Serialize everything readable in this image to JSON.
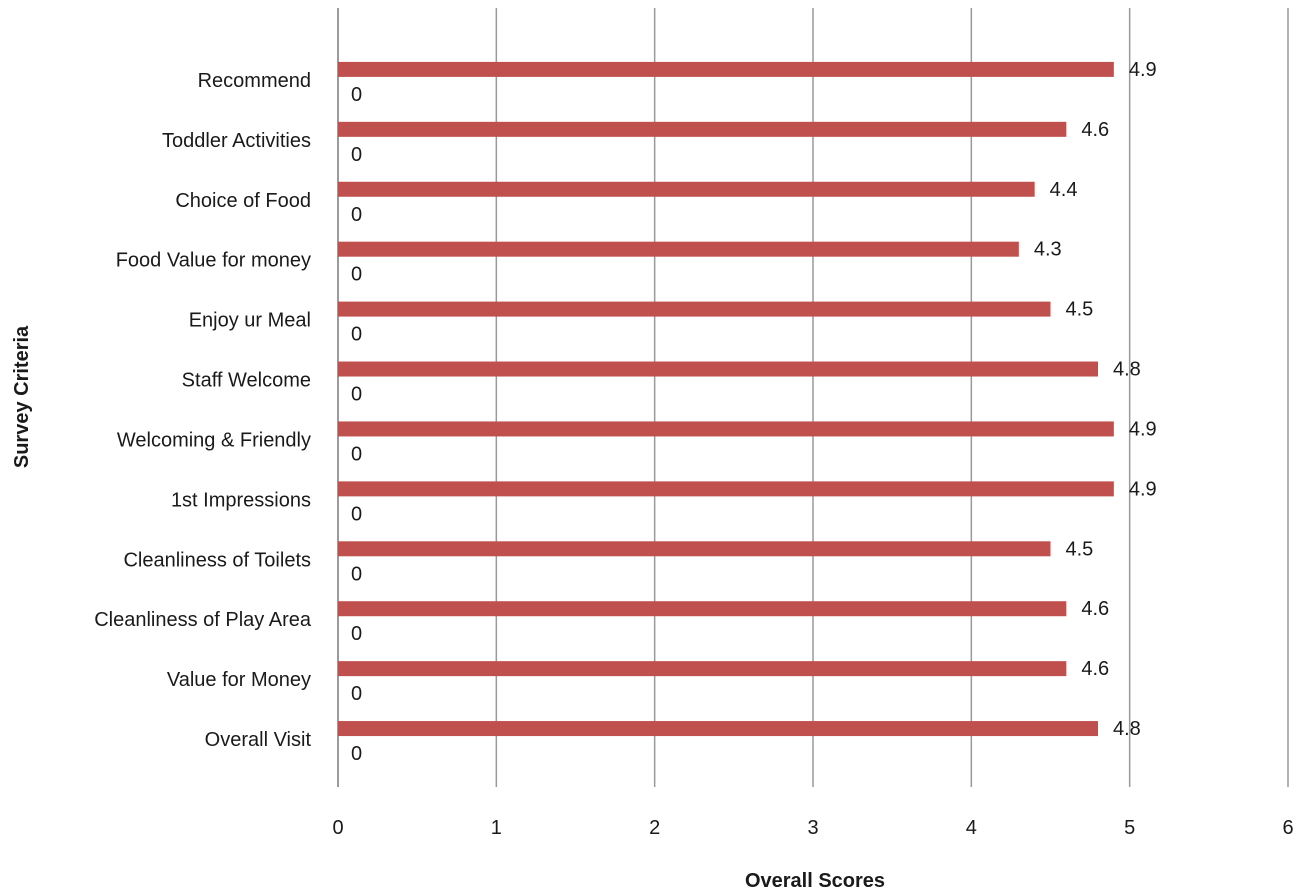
{
  "chart_data": {
    "type": "bar",
    "orientation": "horizontal",
    "title": "",
    "xlabel": "Overall Scores",
    "ylabel": "Survey Criteria",
    "xlim": [
      0,
      6
    ],
    "x_ticks": [
      0,
      1,
      2,
      3,
      4,
      5,
      6
    ],
    "grid": "vertical",
    "categories": [
      "Recommend",
      "Toddler Activities",
      "Choice of Food",
      "Food Value for money",
      "Enjoy ur Meal",
      "Staff Welcome",
      "Welcoming & Friendly",
      "1st Impressions",
      "Cleanliness of Toilets",
      "Cleanliness of Play Area",
      "Value for Money",
      "Overall Visit"
    ],
    "series": [
      {
        "values": [
          4.9,
          4.6,
          4.4,
          4.3,
          4.5,
          4.8,
          4.9,
          4.9,
          4.5,
          4.6,
          4.6,
          4.8
        ],
        "color": "#C0504D"
      },
      {
        "values": [
          0,
          0,
          0,
          0,
          0,
          0,
          0,
          0,
          0,
          0,
          0,
          0
        ],
        "color": "#4F81BD"
      }
    ]
  }
}
